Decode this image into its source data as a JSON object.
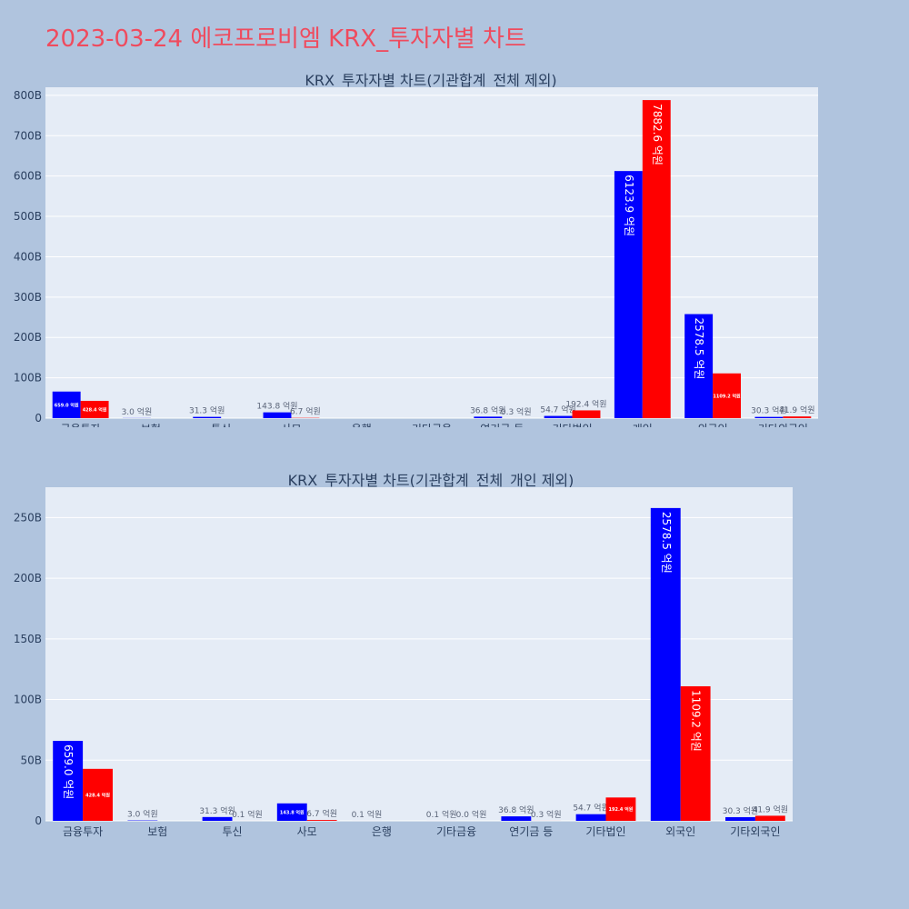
{
  "page": {
    "title": "2023-03-24 에코프로비엠 KRX_투자자별 차트"
  },
  "chart_data": [
    {
      "type": "bar",
      "title": "KRX_투자자별 차트(기관합계_전체 제외)",
      "categories": [
        "금융투자",
        "보험",
        "투신",
        "사모",
        "은행",
        "기타금융",
        "연기금 등",
        "기타법인",
        "개인",
        "외국인",
        "기타외국인"
      ],
      "series": [
        {
          "color": "#0000ff",
          "values": [
            659.0,
            3.0,
            31.3,
            143.8,
            0.1,
            0.1,
            36.8,
            54.7,
            6123.9,
            2578.5,
            30.3
          ],
          "labels": [
            "659.0 억원",
            "3.0 억원",
            "31.3 억원",
            "143.8 억원",
            "",
            "",
            "36.8 억원",
            "54.7 억원",
            "6123.9 억원",
            "2578.5 억원",
            "30.3 억원"
          ]
        },
        {
          "color": "#ff0000",
          "values": [
            428.4,
            0.0,
            0.1,
            6.7,
            0.0,
            0.0,
            0.3,
            192.4,
            7882.6,
            1109.2,
            41.9
          ],
          "labels": [
            "428.4 억원",
            "",
            "",
            "6.7 억원",
            "",
            "",
            "0.3 억원",
            "192.4 억원",
            "7882.6 억원",
            "1109.2 억원",
            "41.9 억원"
          ]
        }
      ],
      "ylim": [
        0,
        8200
      ],
      "yticks": [
        0,
        1000,
        2000,
        3000,
        4000,
        5000,
        6000,
        7000,
        8000
      ],
      "yticklabels": [
        "0",
        "100B",
        "200B",
        "300B",
        "400B",
        "500B",
        "600B",
        "700B",
        "800B"
      ],
      "grid": true
    },
    {
      "type": "bar",
      "title": "KRX_투자자별 차트(기관합계_전체_개인 제외)",
      "categories": [
        "금융투자",
        "보험",
        "투신",
        "사모",
        "은행",
        "기타금융",
        "연기금 등",
        "기타법인",
        "외국인",
        "기타외국인"
      ],
      "series": [
        {
          "color": "#0000ff",
          "values": [
            659.0,
            3.0,
            31.3,
            143.8,
            0.1,
            0.1,
            36.8,
            54.7,
            2578.5,
            30.3
          ],
          "labels": [
            "659.0 억원",
            "3.0 억원",
            "31.3 억원",
            "143.8 억원",
            "0.1 억원",
            "0.1 억원",
            "36.8 억원",
            "54.7 억원",
            "2578.5 억원",
            "30.3 억원"
          ]
        },
        {
          "color": "#ff0000",
          "values": [
            428.4,
            0.0,
            0.1,
            6.7,
            0.0,
            0.0,
            0.3,
            192.4,
            1109.2,
            41.9
          ],
          "labels": [
            "428.4 억원",
            "",
            "0.1 억원",
            "6.7 억원",
            "",
            "0.0 억원",
            "0.3 억원",
            "192.4 억원",
            "1109.2 억원",
            "41.9 억원"
          ]
        }
      ],
      "ylim": [
        0,
        2750
      ],
      "yticks": [
        0,
        500,
        1000,
        1500,
        2000,
        2500
      ],
      "yticklabels": [
        "0",
        "50B",
        "100B",
        "150B",
        "200B",
        "250B"
      ],
      "grid": true
    }
  ]
}
